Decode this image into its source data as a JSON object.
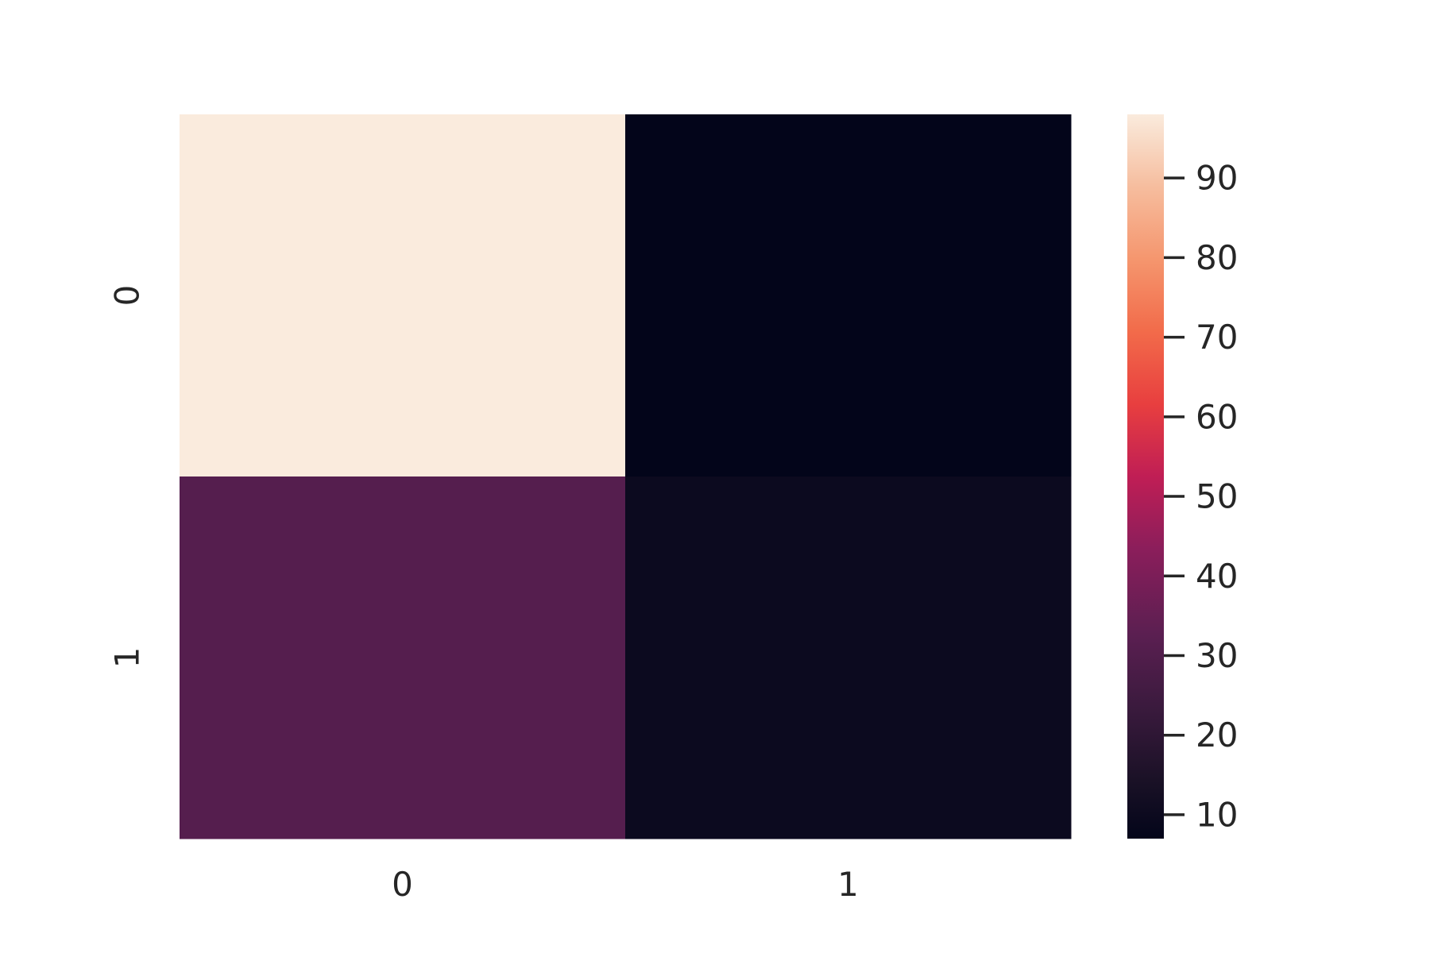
{
  "chart_data": {
    "type": "heatmap",
    "title": "",
    "xlabel": "",
    "ylabel": "",
    "x_categories": [
      "0",
      "1"
    ],
    "y_categories": [
      "0",
      "1"
    ],
    "values": [
      [
        98,
        7
      ],
      [
        31,
        10
      ]
    ],
    "colormap": "rocket",
    "colorbar": {
      "range": [
        7,
        98
      ],
      "ticks": [
        90,
        80,
        70,
        60,
        50,
        40,
        30,
        20,
        10
      ],
      "tick_labels": [
        "90",
        "80",
        "70",
        "60",
        "50",
        "40",
        "30",
        "20",
        "10"
      ]
    },
    "grid": false,
    "colors": {
      "text": "#262626",
      "background": "#ffffff"
    }
  }
}
